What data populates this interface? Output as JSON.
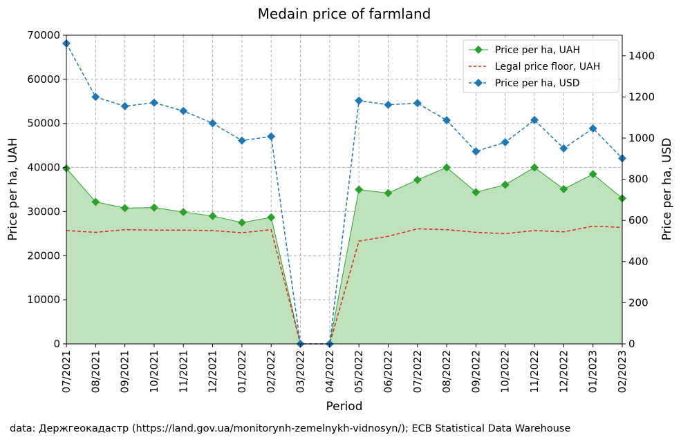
{
  "chart_data": {
    "type": "line",
    "title": "Medain price of farmland",
    "xlabel": "Period",
    "ylabel_left": "Price per ha, UAH",
    "ylabel_right": "Price per ha, USD",
    "categories": [
      "07/2021",
      "08/2021",
      "09/2021",
      "10/2021",
      "11/2021",
      "12/2021",
      "01/2022",
      "02/2022",
      "03/2022",
      "04/2022",
      "05/2022",
      "06/2022",
      "07/2022",
      "08/2022",
      "09/2022",
      "10/2022",
      "11/2022",
      "12/2022",
      "01/2023",
      "02/2023"
    ],
    "ylim_left": [
      0,
      70000
    ],
    "yticks_left": [
      "0",
      "10000",
      "20000",
      "30000",
      "40000",
      "50000",
      "60000",
      "70000"
    ],
    "ylim_right": [
      0,
      1500
    ],
    "yticks_right": [
      "0",
      "200",
      "400",
      "600",
      "800",
      "1000",
      "1200",
      "1400"
    ],
    "grid": true,
    "legend_position": "top-right",
    "series": [
      {
        "name": "Price per ha, UAH",
        "axis": "left",
        "style": "solid line with diamond markers, filled area",
        "color": "#2ca02c",
        "fill_color": "#bfe2bd",
        "values": [
          39800,
          32200,
          30800,
          30900,
          29900,
          29000,
          27500,
          28700,
          0,
          0,
          35000,
          34200,
          37200,
          40000,
          34400,
          36100,
          40000,
          35100,
          38500,
          33000
        ]
      },
      {
        "name": "Legal price floor, UAH",
        "axis": "left",
        "style": "dashed line",
        "color": "#d62728",
        "values": [
          25700,
          25300,
          25900,
          25800,
          25800,
          25700,
          25200,
          25900,
          0,
          0,
          23300,
          24400,
          26100,
          25900,
          25300,
          25000,
          25700,
          25400,
          26700,
          26400
        ]
      },
      {
        "name": "Price per ha, USD",
        "axis": "right",
        "style": "dashed line with diamond markers",
        "color": "#1f77b4",
        "values": [
          1460,
          1200,
          1155,
          1172,
          1132,
          1072,
          988,
          1008,
          0,
          0,
          1182,
          1162,
          1170,
          1087,
          935,
          980,
          1088,
          950,
          1047,
          902
        ]
      }
    ]
  },
  "source_note": "data: Держгеокадастр (https://land.gov.ua/monitorynh-zemelnykh-vidnosyn/); ECB Statistical Data Warehouse"
}
